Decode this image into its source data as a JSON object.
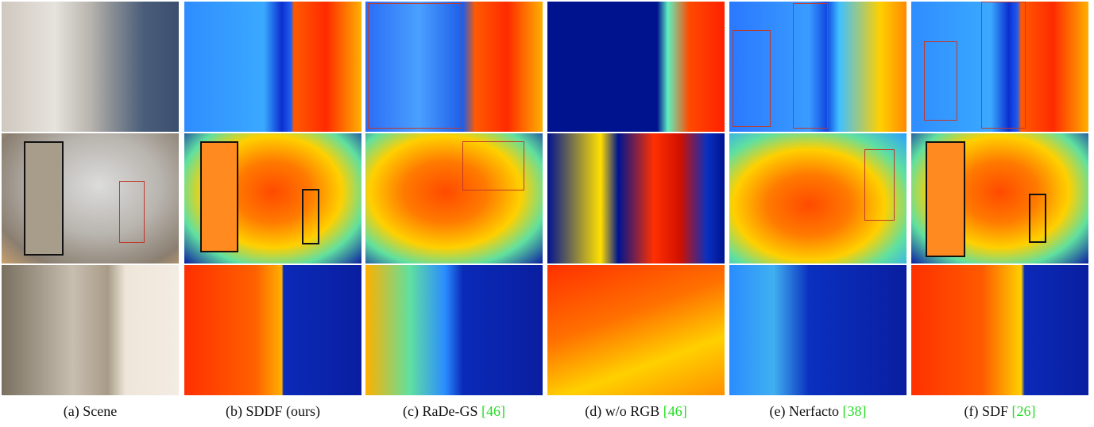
{
  "captions": [
    {
      "label": "(a) Scene"
    },
    {
      "label": "(b) SDDF (ours)"
    },
    {
      "label": "(c) RaDe-GS",
      "cite": "[46]"
    },
    {
      "label": "(d) w/o RGB",
      "cite": "[46]"
    },
    {
      "label": "(e) Nerfacto",
      "cite": "[38]"
    },
    {
      "label": "(f) SDF",
      "cite": "[26]"
    }
  ]
}
